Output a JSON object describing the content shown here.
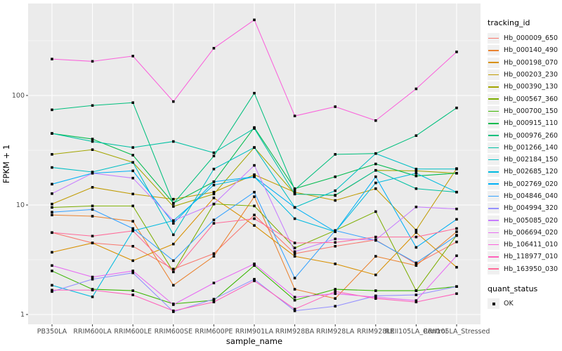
{
  "chart_data": {
    "type": "line",
    "title": "",
    "xlabel": "sample_name",
    "ylabel": "FPKM + 1",
    "y_scale": "log10",
    "y_ticks": [
      "1",
      "10",
      "100"
    ],
    "y_tick_values": [
      1,
      10,
      100
    ],
    "ylim": [
      0.81,
      690
    ],
    "grid": "on",
    "panel_bg": "#EBEBEB",
    "grid_color": "#FFFFFF",
    "marker": "black-square",
    "marker_color": "#000000",
    "categories": [
      "PB350LA",
      "RRIM600LA",
      "RRIM600LE",
      "RRIM600SE",
      "RRIM600PE",
      "RRIM901LA",
      "RRIM928BA",
      "RRIM928LA",
      "RRIM928LE",
      "RRII105LA_Control",
      "RRII105LA_Stressed"
    ],
    "legend": {
      "title": "tracking_id",
      "position": "right"
    },
    "quant_legend": {
      "title": "quant_status",
      "items": [
        {
          "label": "OK",
          "marker": "black-square"
        }
      ]
    },
    "series": [
      {
        "name": "Hb_000009_650",
        "color": "#F8766D",
        "values": [
          5.6,
          4.5,
          4.2,
          2.6,
          3.6,
          8.1,
          3.6,
          4.2,
          4.8,
          2.9,
          4.6
        ]
      },
      {
        "name": "Hb_000140_490",
        "color": "#EA8331",
        "values": [
          8.1,
          7.9,
          7.1,
          1.85,
          3.4,
          11.9,
          1.7,
          1.4,
          3.4,
          2.8,
          5.7
        ]
      },
      {
        "name": "Hb_000198_070",
        "color": "#D89000",
        "values": [
          3.7,
          4.5,
          3.1,
          4.4,
          11.6,
          6.5,
          3.4,
          2.9,
          2.3,
          5.6,
          2.7
        ]
      },
      {
        "name": "Hb_000203_230",
        "color": "#C09B00",
        "values": [
          10.2,
          14.5,
          12.6,
          11.3,
          13.1,
          18.9,
          13.1,
          11.0,
          14.1,
          5.9,
          21.5
        ]
      },
      {
        "name": "Hb_000390_130",
        "color": "#A3A500",
        "values": [
          29,
          32,
          24.5,
          9.7,
          12.6,
          33.5,
          12.6,
          12.2,
          20.7,
          20.5,
          19.5
        ]
      },
      {
        "name": "Hb_000567_360",
        "color": "#7CAE00",
        "values": [
          9.5,
          9.8,
          9.8,
          2.45,
          10.2,
          9.8,
          4.05,
          5.85,
          8.7,
          1.65,
          5.3
        ]
      },
      {
        "name": "Hb_000700_150",
        "color": "#39B600",
        "values": [
          2.5,
          1.7,
          1.65,
          1.25,
          1.35,
          2.8,
          1.35,
          1.7,
          1.65,
          1.65,
          1.8
        ]
      },
      {
        "name": "Hb_000915_110",
        "color": "#00BB4E",
        "values": [
          45,
          40,
          28.5,
          10.4,
          16.3,
          51,
          14.1,
          18.1,
          23.7,
          18.4,
          19.5
        ]
      },
      {
        "name": "Hb_000976_260",
        "color": "#00BF7D",
        "values": [
          74,
          81,
          86,
          10.3,
          28,
          105,
          13.8,
          29,
          29.5,
          43,
          77
        ]
      },
      {
        "name": "Hb_001266_140",
        "color": "#00C1A3",
        "values": [
          45,
          38,
          33.5,
          38,
          30,
          50,
          12.6,
          12.3,
          20.7,
          14.1,
          13.1
        ]
      },
      {
        "name": "Hb_002184_150",
        "color": "#00BFC4",
        "values": [
          22,
          20,
          24.5,
          5.35,
          21.3,
          33.5,
          9.5,
          13.5,
          29.5,
          21.3,
          21.3
        ]
      },
      {
        "name": "Hb_002685_120",
        "color": "#00BAE0",
        "values": [
          1.85,
          1.45,
          5.8,
          7.2,
          15.2,
          18.1,
          7.5,
          5.7,
          15.9,
          19.5,
          13.1
        ]
      },
      {
        "name": "Hb_002769_020",
        "color": "#00B0F6",
        "values": [
          15.5,
          19.5,
          20.5,
          6.8,
          16.3,
          18.1,
          9.5,
          5.7,
          18.1,
          4.1,
          7.4
        ]
      },
      {
        "name": "Hb_004846_040",
        "color": "#35A2FF",
        "values": [
          8.6,
          9.1,
          6.1,
          3.1,
          7.3,
          13.1,
          2.15,
          5.85,
          4.75,
          2.96,
          5.25
        ]
      },
      {
        "name": "Hb_004994_320",
        "color": "#9590FF",
        "values": [
          1.62,
          2.1,
          2.4,
          1.06,
          1.38,
          2.1,
          1.08,
          1.19,
          1.48,
          1.51,
          1.8
        ]
      },
      {
        "name": "Hb_005085_020",
        "color": "#C77CFF",
        "values": [
          12.7,
          19.5,
          17.6,
          7.2,
          10.2,
          23,
          3.75,
          4.9,
          4.8,
          9.6,
          9.2
        ]
      },
      {
        "name": "Hb_006694_020",
        "color": "#E76BF3",
        "values": [
          2.8,
          2.2,
          2.5,
          1.23,
          1.94,
          2.9,
          1.44,
          1.55,
          1.44,
          1.34,
          3.44
        ]
      },
      {
        "name": "Hb_106411_010",
        "color": "#FA62DB",
        "values": [
          215,
          205,
          229,
          88,
          270,
          490,
          65,
          79,
          59,
          115,
          250
        ]
      },
      {
        "name": "Hb_118977_010",
        "color": "#FF62BC",
        "values": [
          1.67,
          1.67,
          1.51,
          1.08,
          1.3,
          2.03,
          1.12,
          1.62,
          1.4,
          1.3,
          1.55
        ]
      },
      {
        "name": "Hb_163950_030",
        "color": "#FF6A98",
        "values": [
          5.6,
          5.2,
          5.8,
          2.45,
          6.8,
          7.5,
          4.5,
          4.55,
          5.1,
          5.1,
          6.1
        ]
      }
    ]
  }
}
